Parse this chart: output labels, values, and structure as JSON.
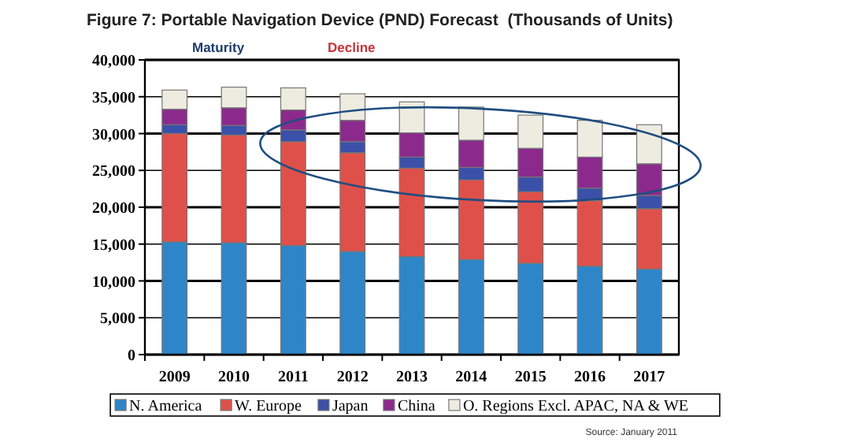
{
  "chart_data": {
    "type": "bar",
    "stacked": true,
    "title": "Figure 7: Portable Navigation Device (PND) Forecast  (Thousands of Units)",
    "categories": [
      "2009",
      "2010",
      "2011",
      "2012",
      "2013",
      "2014",
      "2015",
      "2016",
      "2017"
    ],
    "series": [
      {
        "name": "N. America",
        "color": "#2e86c8",
        "values": [
          15300,
          15200,
          14800,
          14000,
          13300,
          12900,
          12400,
          12000,
          11600
        ]
      },
      {
        "name": "W. Europe",
        "color": "#e0504a",
        "values": [
          14700,
          14600,
          14100,
          13400,
          12000,
          10800,
          9700,
          8900,
          8200
        ]
      },
      {
        "name": "Japan",
        "color": "#3b50a8",
        "values": [
          1200,
          1300,
          1600,
          1500,
          1500,
          1700,
          2000,
          1700,
          1800
        ]
      },
      {
        "name": "China",
        "color": "#8b2a8c",
        "values": [
          2100,
          2400,
          2700,
          2900,
          3300,
          3700,
          3900,
          4200,
          4300
        ]
      },
      {
        "name": "O. Regions Excl. APAC, NA & WE",
        "color": "#eeebe0",
        "values": [
          2600,
          2800,
          3000,
          3600,
          4200,
          4500,
          4500,
          5000,
          5300
        ]
      }
    ],
    "ylim": [
      0,
      40000
    ],
    "yticks": [
      {
        "value": 0,
        "label": "0"
      },
      {
        "value": 5000,
        "label": "5,000"
      },
      {
        "value": 10000,
        "label": "10,000"
      },
      {
        "value": 15000,
        "label": "15,000"
      },
      {
        "value": 20000,
        "label": "20,000"
      },
      {
        "value": 25000,
        "label": "25,000"
      },
      {
        "value": 30000,
        "label": "30,000"
      },
      {
        "value": 35000,
        "label": "35,000"
      },
      {
        "value": 40000,
        "label": "40,000"
      }
    ],
    "grid": "y",
    "legend": "bottom",
    "annotations": [
      "Maturity",
      "Decline",
      "Source: January 2011"
    ]
  }
}
